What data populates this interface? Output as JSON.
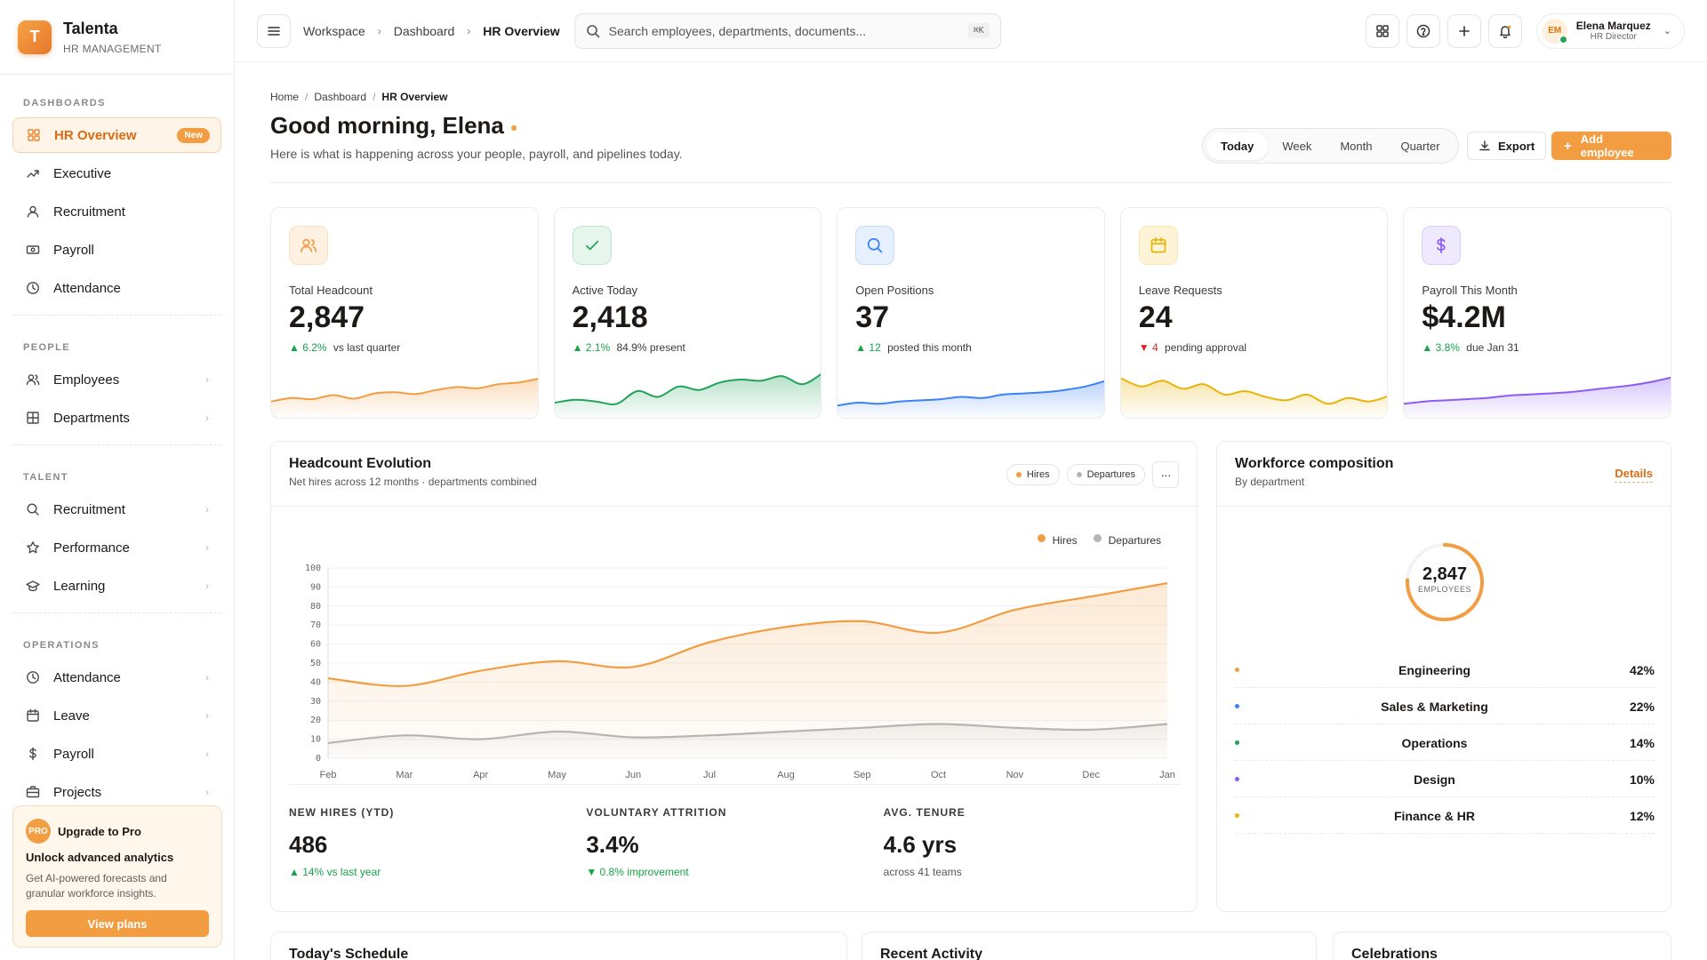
{
  "brand": {
    "logo_letter": "T",
    "name": "Talenta",
    "subtitle": "HR MANAGEMENT"
  },
  "sidebar": {
    "sections": [
      {
        "title": "DASHBOARDS",
        "items": [
          {
            "label": "HR Overview",
            "icon": "grid-icon",
            "active": true,
            "badge": "New"
          },
          {
            "label": "Executive",
            "icon": "trend-up-icon"
          },
          {
            "label": "Recruitment",
            "icon": "user-icon"
          },
          {
            "label": "Payroll",
            "icon": "banknote-icon"
          },
          {
            "label": "Attendance",
            "icon": "clock-icon"
          }
        ]
      },
      {
        "title": "PEOPLE",
        "items": [
          {
            "label": "Employees",
            "icon": "users-icon",
            "chevron": true
          },
          {
            "label": "Departments",
            "icon": "layout-icon",
            "chevron": true
          }
        ]
      },
      {
        "title": "TALENT",
        "items": [
          {
            "label": "Recruitment",
            "icon": "search-icon",
            "chevron": true
          },
          {
            "label": "Performance",
            "icon": "star-icon",
            "chevron": true
          },
          {
            "label": "Learning",
            "icon": "graduation-cap-icon",
            "chevron": true
          }
        ]
      },
      {
        "title": "OPERATIONS",
        "items": [
          {
            "label": "Attendance",
            "icon": "clock-icon",
            "chevron": true
          },
          {
            "label": "Leave",
            "icon": "calendar-icon",
            "chevron": true
          },
          {
            "label": "Payroll",
            "icon": "dollar-icon",
            "chevron": true
          },
          {
            "label": "Projects",
            "icon": "briefcase-icon",
            "chevron": true
          }
        ]
      }
    ],
    "upgrade": {
      "chip": "PRO",
      "title": "Upgrade to Pro",
      "subtitle": "Unlock advanced analytics",
      "description": "Get AI-powered forecasts and granular workforce insights.",
      "button": "View plans"
    }
  },
  "topbar": {
    "breadcrumb": [
      "Workspace",
      "Dashboard",
      "HR Overview"
    ],
    "search_placeholder": "Search employees, departments, documents...",
    "search_shortcut": "⌘K",
    "user": {
      "initials": "EM",
      "name": "Elena Marquez",
      "role": "HR Director"
    }
  },
  "page": {
    "breadcrumb": [
      "Home",
      "Dashboard",
      "HR Overview"
    ],
    "greeting": "Good morning, Elena",
    "subtitle": "Here is what is happening across your people, payroll, and pipelines today.",
    "periods": [
      "Today",
      "Week",
      "Month",
      "Quarter"
    ],
    "active_period": "Today",
    "export_label": "Export",
    "add_label": "Add employee"
  },
  "kpis": [
    {
      "label": "Total Headcount",
      "value": "2,847",
      "delta": "▲ 6.2%",
      "delta_dir": "up",
      "note": "vs last quarter",
      "icon": "users-icon",
      "color": "#f29d42",
      "bg": "#fff1e2",
      "spark": [
        22,
        28,
        26,
        33,
        27,
        36,
        38,
        35,
        42,
        47,
        45,
        52,
        55,
        62
      ]
    },
    {
      "label": "Active Today",
      "value": "2,418",
      "delta": "▲ 2.1%",
      "delta_dir": "up",
      "note": "84.9% present",
      "icon": "check-icon",
      "color": "#22a35a",
      "bg": "#e6f6ec",
      "spark": [
        20,
        25,
        22,
        18,
        40,
        30,
        48,
        42,
        55,
        60,
        58,
        66,
        52,
        72
      ]
    },
    {
      "label": "Open Positions",
      "value": "37",
      "delta": "▲ 12",
      "delta_dir": "up",
      "note": "posted this month",
      "icon": "search-icon",
      "color": "#3b82f6",
      "bg": "#e6f0fe",
      "spark": [
        15,
        20,
        18,
        22,
        24,
        26,
        30,
        28,
        34,
        36,
        38,
        42,
        48,
        58
      ]
    },
    {
      "label": "Leave Requests",
      "value": "24",
      "delta": "▼ 4",
      "delta_dir": "down",
      "note": "pending approval",
      "icon": "calendar-icon",
      "color": "#eab308",
      "bg": "#fdf4d8",
      "spark": [
        62,
        48,
        58,
        44,
        52,
        34,
        40,
        30,
        24,
        34,
        18,
        28,
        22,
        32
      ]
    },
    {
      "label": "Payroll This Month",
      "value": "$4.2M",
      "delta": "▲ 3.8%",
      "delta_dir": "up",
      "note": "due Jan 31",
      "icon": "dollar-icon",
      "color": "#8b5cf6",
      "bg": "#efe9fe",
      "spark": [
        18,
        22,
        24,
        26,
        28,
        32,
        34,
        36,
        38,
        42,
        46,
        50,
        56,
        64
      ]
    }
  ],
  "headcount": {
    "title": "Headcount Evolution",
    "subtitle": "Net hires across 12 months · departments combined",
    "pills": [
      {
        "label": "Hires",
        "color": "#f29d42"
      },
      {
        "label": "Departures",
        "color": "#b5b5b5"
      }
    ],
    "more_icon": "more-horizontal-icon",
    "stats": [
      {
        "title": "NEW HIRES (YTD)",
        "value": "486",
        "delta": "▲ 14% vs last year"
      },
      {
        "title": "VOLUNTARY ATTRITION",
        "value": "3.4%",
        "delta": "▼ 0.8% improvement"
      },
      {
        "title": "AVG. TENURE",
        "value": "4.6 yrs",
        "delta": "across 41 teams"
      }
    ]
  },
  "chart_data": {
    "type": "area",
    "x": [
      "Feb",
      "Mar",
      "Apr",
      "May",
      "Jun",
      "Jul",
      "Aug",
      "Sep",
      "Oct",
      "Nov",
      "Dec",
      "Jan"
    ],
    "series": [
      {
        "name": "Hires",
        "color": "#f29d42",
        "values": [
          42,
          38,
          46,
          51,
          48,
          61,
          69,
          72,
          66,
          78,
          85,
          92
        ]
      },
      {
        "name": "Departures",
        "color": "#b5b5b5",
        "values": [
          8,
          12,
          10,
          14,
          11,
          12,
          14,
          16,
          18,
          16,
          15,
          18
        ]
      }
    ],
    "ylim": [
      0,
      100
    ],
    "yticks": [
      0,
      10,
      20,
      30,
      40,
      50,
      60,
      70,
      80,
      90,
      100
    ],
    "grid": true,
    "legend": "top-right"
  },
  "composition": {
    "title": "Workforce composition",
    "subtitle": "By department",
    "details": "Details",
    "total": "2,847",
    "total_label": "EMPLOYEES",
    "rows": [
      {
        "name": "Engineering",
        "pct": "42%",
        "color": "#f29d42"
      },
      {
        "name": "Sales & Marketing",
        "pct": "22%",
        "color": "#3b82f6"
      },
      {
        "name": "Operations",
        "pct": "14%",
        "color": "#22a35a"
      },
      {
        "name": "Design",
        "pct": "10%",
        "color": "#8b5cf6"
      },
      {
        "name": "Finance & HR",
        "pct": "12%",
        "color": "#eab308"
      }
    ]
  },
  "bottom_cards": [
    "Today's Schedule",
    "Recent Activity",
    "Celebrations"
  ]
}
